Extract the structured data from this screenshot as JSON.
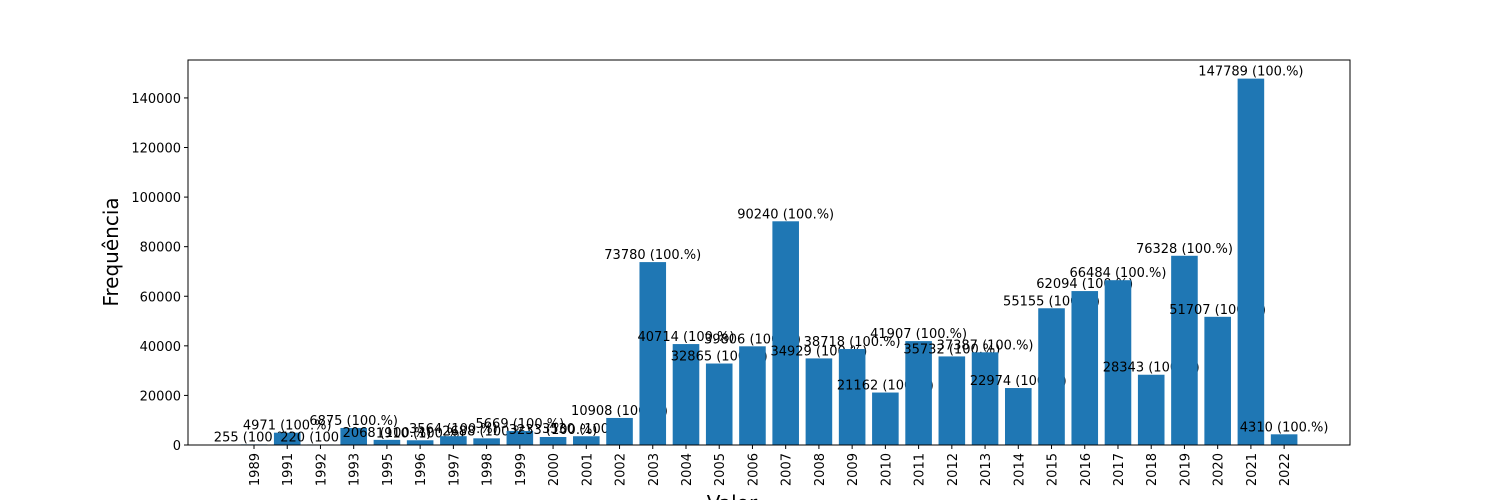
{
  "chart_data": {
    "type": "bar",
    "x_label": "Valor",
    "y_label": "Frequência",
    "categories": [
      "1989",
      "1991",
      "1992",
      "1993",
      "1995",
      "1996",
      "1997",
      "1998",
      "1999",
      "2000",
      "2001",
      "2002",
      "2003",
      "2004",
      "2005",
      "2006",
      "2007",
      "2008",
      "2009",
      "2010",
      "2011",
      "2012",
      "2013",
      "2014",
      "2015",
      "2016",
      "2017",
      "2018",
      "2019",
      "2020",
      "2021",
      "2022"
    ],
    "values": [
      255,
      4971,
      220,
      6875,
      2068,
      1910,
      3564,
      2688,
      5669,
      3233,
      3530,
      10908,
      73780,
      40714,
      32865,
      39806,
      90240,
      34929,
      38718,
      21162,
      41907,
      35732,
      37387,
      22974,
      55155,
      62094,
      66484,
      28343,
      76328,
      51707,
      147789,
      4310
    ],
    "value_labels": [
      "255 (100.%)",
      "4971 (100.%)",
      "220 (100.%)",
      "6875 (100.%)",
      "2068 (100.%)",
      "1910 (100.%)",
      "3564 (100.%)",
      "2688 (100.%)",
      "5669 (100.%)",
      "3233 (100.%)",
      "3530 (100.%)",
      "10908 (100.%)",
      "73780 (100.%)",
      "40714 (100.%)",
      "32865 (100.%)",
      "39806 (100.%)",
      "90240 (100.%)",
      "34929 (100.%)",
      "38718 (100.%)",
      "21162 (100.%)",
      "41907 (100.%)",
      "35732 (100.%)",
      "37387 (100.%)",
      "22974 (100.%)",
      "55155 (100.%)",
      "62094 (100.%)",
      "66484 (100.%)",
      "28343 (100.%)",
      "76328 (100.%)",
      "51707 (100.%)",
      "147789 (100.%)",
      "4310 (100.%)"
    ],
    "color": "#1f77b4",
    "ylim": [
      0,
      155300
    ],
    "yticks": [
      0,
      20000,
      40000,
      60000,
      80000,
      100000,
      120000,
      140000
    ]
  }
}
